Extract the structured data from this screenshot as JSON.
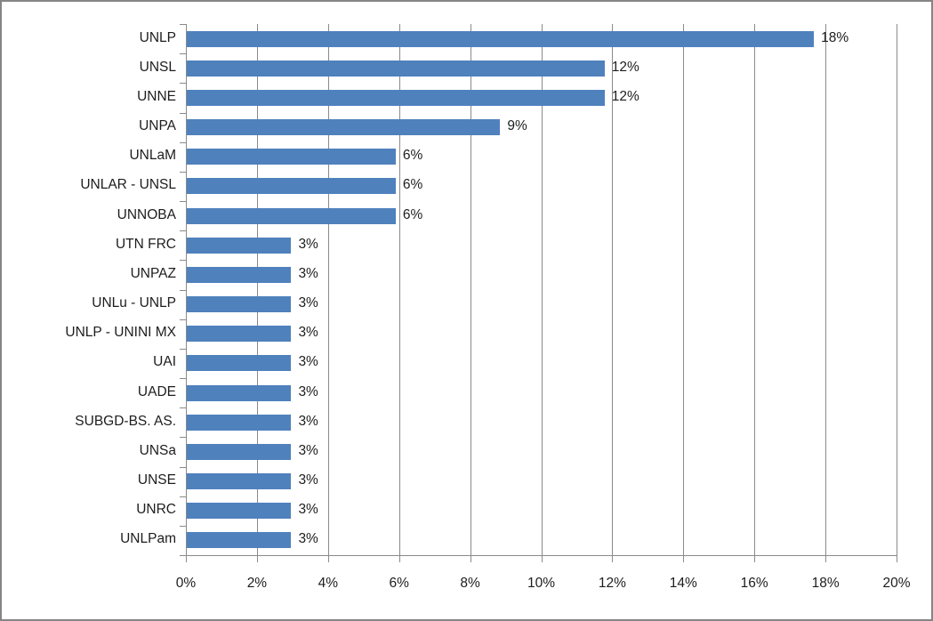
{
  "chart_data": {
    "type": "bar",
    "orientation": "horizontal",
    "title": "",
    "xlabel": "",
    "ylabel": "",
    "legend": "none",
    "grid": "vertical",
    "xlim": [
      0,
      20
    ],
    "categories": [
      "UNLP",
      "UNSL",
      "UNNE",
      "UNPA",
      "UNLaM",
      "UNLAR - UNSL",
      "UNNOBA",
      "UTN FRC",
      "UNPAZ",
      "UNLu - UNLP",
      "UNLP - UNINI MX",
      "UAI",
      "UADE",
      "SUBGD-BS. AS.",
      "UNSa",
      "UNSE",
      "UNRC",
      "UNLPam"
    ],
    "values": [
      17.65,
      11.76,
      11.76,
      8.82,
      5.88,
      5.88,
      5.88,
      2.94,
      2.94,
      2.94,
      2.94,
      2.94,
      2.94,
      2.94,
      2.94,
      2.94,
      2.94,
      2.94
    ],
    "value_labels": [
      "18%",
      "12%",
      "12%",
      "9%",
      "6%",
      "6%",
      "6%",
      "3%",
      "3%",
      "3%",
      "3%",
      "3%",
      "3%",
      "3%",
      "3%",
      "3%",
      "3%",
      "3%"
    ],
    "x_tick_values": [
      0,
      2,
      4,
      6,
      8,
      10,
      12,
      14,
      16,
      18,
      20
    ],
    "x_tick_labels": [
      "0%",
      "2%",
      "4%",
      "6%",
      "8%",
      "10%",
      "12%",
      "14%",
      "16%",
      "18%",
      "20%"
    ],
    "colors": {
      "bar_fill": "#4F81BD",
      "gridline": "#8a8a8a",
      "axis_line": "#8a8a8a",
      "text": "#1d1d1d",
      "chart_border": "#858585",
      "background": "#ffffff"
    }
  }
}
